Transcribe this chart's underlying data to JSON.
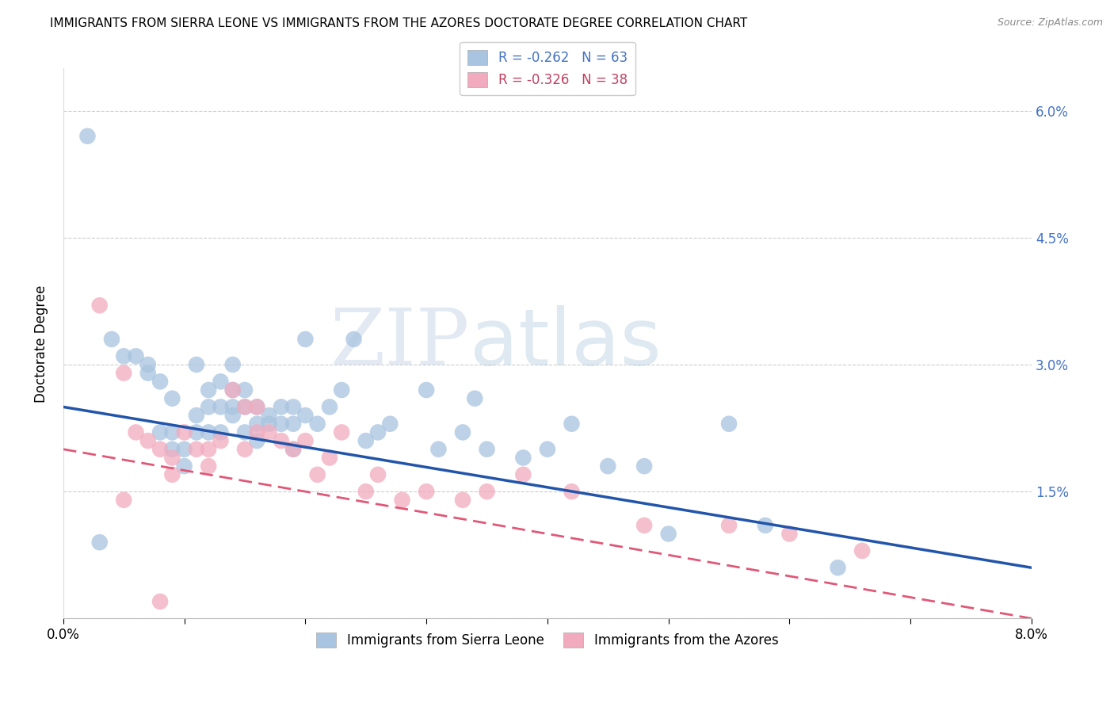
{
  "title": "IMMIGRANTS FROM SIERRA LEONE VS IMMIGRANTS FROM THE AZORES DOCTORATE DEGREE CORRELATION CHART",
  "source": "Source: ZipAtlas.com",
  "ylabel": "Doctorate Degree",
  "x_min": 0.0,
  "x_max": 0.08,
  "y_min": 0.0,
  "y_max": 0.065,
  "x_ticks": [
    0.0,
    0.01,
    0.02,
    0.03,
    0.04,
    0.05,
    0.06,
    0.07,
    0.08
  ],
  "y_ticks": [
    0.0,
    0.015,
    0.03,
    0.045,
    0.06
  ],
  "y_tick_labels": [
    "",
    "1.5%",
    "3.0%",
    "4.5%",
    "6.0%"
  ],
  "legend1_label": "R = -0.262   N = 63",
  "legend2_label": "R = -0.326   N = 38",
  "legend_bottom1": "Immigrants from Sierra Leone",
  "legend_bottom2": "Immigrants from the Azores",
  "blue_color": "#a8c4e0",
  "pink_color": "#f2abbe",
  "blue_line_color": "#2255aa",
  "pink_line_color": "#e05878",
  "grid_color": "#cccccc",
  "sierra_leone_x": [
    0.002,
    0.004,
    0.005,
    0.006,
    0.007,
    0.007,
    0.008,
    0.008,
    0.009,
    0.009,
    0.009,
    0.01,
    0.01,
    0.011,
    0.011,
    0.011,
    0.012,
    0.012,
    0.012,
    0.013,
    0.013,
    0.013,
    0.014,
    0.014,
    0.014,
    0.014,
    0.015,
    0.015,
    0.015,
    0.016,
    0.016,
    0.016,
    0.017,
    0.017,
    0.018,
    0.018,
    0.019,
    0.019,
    0.019,
    0.02,
    0.02,
    0.021,
    0.022,
    0.023,
    0.024,
    0.025,
    0.026,
    0.027,
    0.03,
    0.031,
    0.033,
    0.034,
    0.035,
    0.038,
    0.04,
    0.042,
    0.045,
    0.048,
    0.05,
    0.055,
    0.058,
    0.064,
    0.003
  ],
  "sierra_leone_y": [
    0.057,
    0.033,
    0.031,
    0.031,
    0.03,
    0.029,
    0.028,
    0.022,
    0.026,
    0.022,
    0.02,
    0.02,
    0.018,
    0.03,
    0.024,
    0.022,
    0.027,
    0.025,
    0.022,
    0.028,
    0.025,
    0.022,
    0.03,
    0.027,
    0.025,
    0.024,
    0.027,
    0.025,
    0.022,
    0.025,
    0.023,
    0.021,
    0.024,
    0.023,
    0.025,
    0.023,
    0.025,
    0.023,
    0.02,
    0.033,
    0.024,
    0.023,
    0.025,
    0.027,
    0.033,
    0.021,
    0.022,
    0.023,
    0.027,
    0.02,
    0.022,
    0.026,
    0.02,
    0.019,
    0.02,
    0.023,
    0.018,
    0.018,
    0.01,
    0.023,
    0.011,
    0.006,
    0.009
  ],
  "azores_x": [
    0.003,
    0.005,
    0.006,
    0.007,
    0.008,
    0.009,
    0.009,
    0.01,
    0.011,
    0.012,
    0.012,
    0.013,
    0.014,
    0.015,
    0.015,
    0.016,
    0.016,
    0.017,
    0.018,
    0.019,
    0.02,
    0.021,
    0.022,
    0.023,
    0.025,
    0.026,
    0.028,
    0.03,
    0.033,
    0.035,
    0.038,
    0.042,
    0.048,
    0.055,
    0.06,
    0.066,
    0.005,
    0.008
  ],
  "azores_y": [
    0.037,
    0.029,
    0.022,
    0.021,
    0.02,
    0.019,
    0.017,
    0.022,
    0.02,
    0.02,
    0.018,
    0.021,
    0.027,
    0.025,
    0.02,
    0.025,
    0.022,
    0.022,
    0.021,
    0.02,
    0.021,
    0.017,
    0.019,
    0.022,
    0.015,
    0.017,
    0.014,
    0.015,
    0.014,
    0.015,
    0.017,
    0.015,
    0.011,
    0.011,
    0.01,
    0.008,
    0.014,
    0.002
  ],
  "blue_line_x0": 0.0,
  "blue_line_y0": 0.025,
  "blue_line_x1": 0.08,
  "blue_line_y1": 0.006,
  "pink_line_x0": 0.0,
  "pink_line_y0": 0.02,
  "pink_line_x1": 0.08,
  "pink_line_y1": 0.0
}
